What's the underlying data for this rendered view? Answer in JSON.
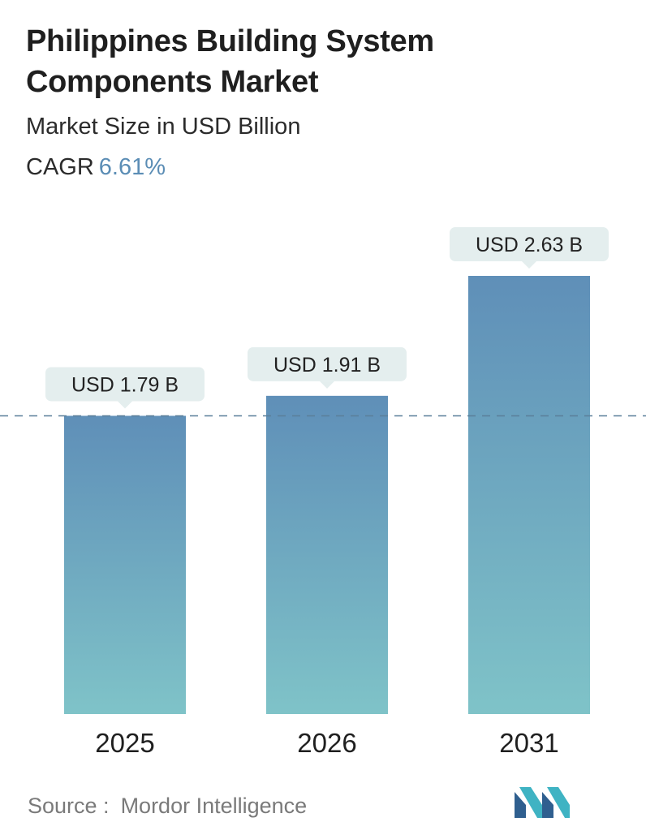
{
  "header": {
    "title": "Philippines Building System Components Market",
    "subtitle": "Market Size in USD Billion",
    "cagr_label": "CAGR",
    "cagr_value": "6.61%"
  },
  "footer": {
    "source_label": "Source :",
    "source_name": "Mordor Intelligence"
  },
  "colors": {
    "bar_top": "#5f8fb8",
    "bar_bottom": "#7fc3c8",
    "callout_bg": "#e4eeee",
    "reference_line": "#5a7f99",
    "cagr_accent": "#5b8db5"
  },
  "chart_data": {
    "type": "bar",
    "categories": [
      "2025",
      "2026",
      "2031"
    ],
    "values": [
      1.79,
      1.91,
      2.63
    ],
    "data_labels": [
      "USD 1.79 B",
      "USD 1.91 B",
      "USD 2.63 B"
    ],
    "reference_line_value": 1.79,
    "reference_line_style": "dashed",
    "ylim": [
      0,
      2.63
    ],
    "grid": false,
    "legend": "none"
  }
}
